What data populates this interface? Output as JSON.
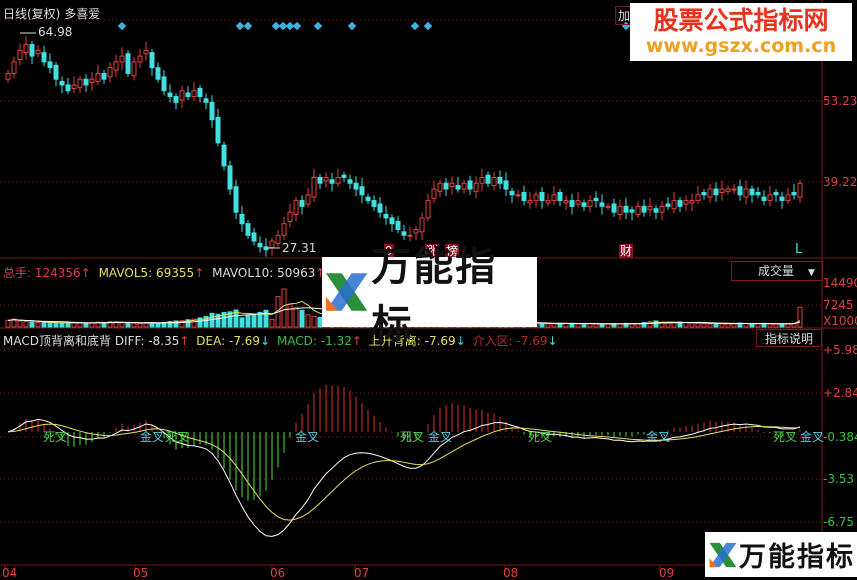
{
  "header": {
    "title": "日线(复权)",
    "stock": "多喜爱",
    "add_button": "加"
  },
  "watermarks": {
    "top_title": "股票公式指标网",
    "top_url": "www.gszx.com.cn",
    "logo": "万能指标"
  },
  "colors": {
    "up": "#e04040",
    "down": "#40e0e0",
    "ma5": "#e6e060",
    "ma10": "#ffffff",
    "diff": "#ffffff",
    "dea": "#e6e060",
    "hist_up": "#e03030",
    "hist_down": "#50e040",
    "grid": "#7a1a1a"
  },
  "price_panel": {
    "high_label": "64.98",
    "low_label": "27.31",
    "axis": [
      "53.23",
      "39.22"
    ],
    "markers": [
      "9",
      "涨",
      "榜",
      "财",
      "L"
    ]
  },
  "volume_panel": {
    "total_label": "总手:",
    "total": "124356",
    "mavol5_label": "MAVOL5:",
    "mavol5": "69355",
    "mavol10_label": "MAVOL10:",
    "mavol10": "50963",
    "dropdown": "成交量",
    "axis": [
      "14490",
      "7245",
      "X10000"
    ]
  },
  "macd_panel": {
    "name": "MACD顶背离和底背",
    "diff_label": "DIFF:",
    "diff": "-8.35",
    "dea_label": "DEA:",
    "dea": "-7.69",
    "macd_label": "MACD:",
    "macd": "-1.32",
    "rise_label": "上升背离:",
    "rise": "-7.69",
    "entry_label": "介入区:",
    "entry": "-7.69",
    "explain_button": "指标说明",
    "axis": [
      "+5.98",
      "+2.84",
      "-0.384",
      "-3.53",
      "-6.75"
    ],
    "cross_labels": [
      "死叉",
      "金叉",
      "死叉",
      "金叉",
      "死叉",
      "金叉",
      "死叉",
      "金叉",
      "死叉",
      "金叉"
    ]
  },
  "x_axis": [
    "04",
    "05",
    "06",
    "07",
    "08",
    "09"
  ],
  "chart_data": {
    "type": "candlestick",
    "ylim": [
      25,
      68
    ],
    "close": [
      58,
      60,
      62,
      63,
      61,
      62,
      60,
      59,
      57,
      56,
      55,
      56,
      57,
      56,
      57,
      58,
      57,
      59,
      60,
      61,
      58,
      60,
      61,
      62,
      59,
      57,
      55,
      54,
      53,
      55,
      54,
      55,
      54,
      53,
      50,
      46,
      42,
      38,
      34,
      32,
      30,
      29,
      28,
      27.5,
      29,
      30,
      32,
      34,
      36,
      35,
      37,
      40,
      39,
      40,
      39,
      40,
      40,
      39,
      38,
      37,
      36,
      35,
      34,
      33,
      32,
      31,
      30,
      30,
      31,
      33,
      36,
      38,
      39,
      38,
      39,
      38,
      39,
      38,
      39,
      40,
      39,
      40,
      39,
      38,
      37,
      37,
      36,
      36,
      37,
      36,
      36,
      37,
      36,
      36,
      35,
      36,
      35,
      36,
      36,
      35,
      35,
      34,
      35,
      34,
      34,
      35,
      34,
      35,
      34,
      35,
      35,
      36,
      35,
      36,
      36,
      37,
      37,
      38,
      37,
      38,
      38,
      38,
      37,
      38,
      37,
      37,
      36,
      37,
      37,
      36,
      37,
      37,
      39
    ],
    "volume": [
      2200,
      2600,
      2000,
      1800,
      1600,
      1500,
      1400,
      1500,
      1300,
      1200,
      1400,
      1500,
      1300,
      1200,
      1400,
      1600,
      1500,
      1800,
      1700,
      1400,
      1300,
      1200,
      1100,
      1400,
      1300,
      1200,
      1500,
      1800,
      2000,
      2100,
      2400,
      2600,
      3000,
      3500,
      4500,
      4200,
      4800,
      5000,
      5600,
      3000,
      3800,
      4200,
      4800,
      5500,
      2500,
      10000,
      12500,
      7500,
      6500,
      5500,
      4000,
      3500,
      3200,
      3000,
      2800,
      2600,
      2500,
      2400,
      2300,
      2200,
      2100,
      2000,
      2300,
      2400,
      2200,
      2000,
      2500,
      2800,
      3000,
      3200,
      2800,
      2600,
      2400,
      2200,
      2000,
      1900,
      1800,
      1700,
      1600,
      1500,
      1600,
      1700,
      1500,
      1400,
      1300,
      1200,
      1300,
      1400,
      1200,
      1100,
      1000,
      1100,
      1200,
      1300,
      1100,
      1000,
      1100,
      1200,
      1000,
      900,
      1000,
      1100,
      1000,
      1200,
      1100,
      1000,
      1500,
      1800,
      2000,
      1500,
      1300,
      1400,
      1600,
      1500,
      1300,
      1200,
      1100,
      1000,
      1200,
      1100,
      1000,
      1100,
      1300,
      1200,
      1000,
      1100,
      1200,
      1000,
      900,
      1000,
      1100,
      1200,
      6500
    ],
    "diamonds": [
      122,
      240,
      248,
      276,
      283,
      290,
      297,
      318,
      352,
      415,
      428,
      626
    ]
  }
}
